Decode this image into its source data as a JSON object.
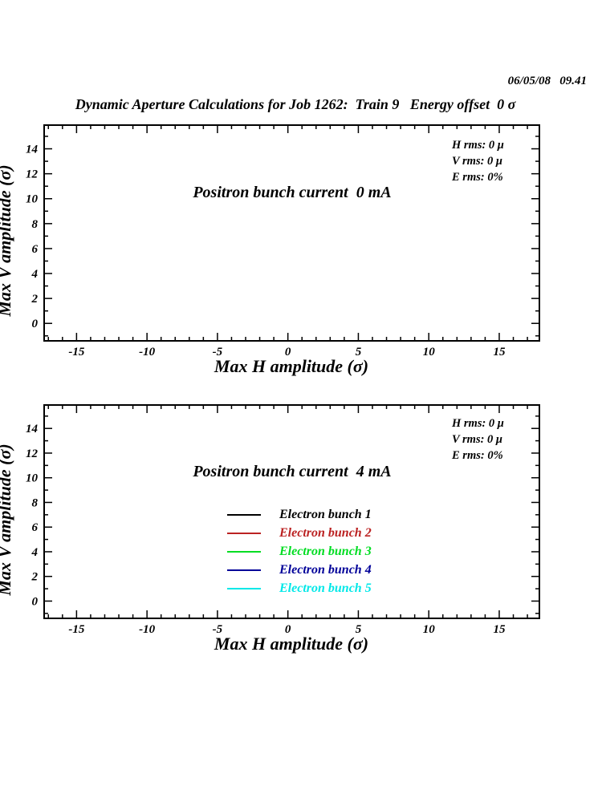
{
  "page": {
    "timestamp": "06/05/08   09.41",
    "title": "Dynamic Aperture Calculations for Job 1262:  Train 9   Energy offset  0 σ"
  },
  "chart_data": [
    {
      "type": "line",
      "title": "",
      "xlabel": "Max H amplitude (σ)",
      "ylabel": "Max V amplitude (σ)",
      "xlim": [
        -17.3,
        17.85
      ],
      "ylim": [
        -1.4,
        15.9
      ],
      "xticks": [
        -15,
        -10,
        -5,
        0,
        5,
        10,
        15
      ],
      "yticks": [
        0,
        2,
        4,
        6,
        8,
        10,
        12,
        14
      ],
      "minor_tick_step": 1,
      "grid": false,
      "series": [],
      "annotations": {
        "center_label": "Positron bunch current  0 mA",
        "h_rms": "H rms: 0 μ",
        "v_rms": "V rms: 0 μ",
        "e_rms": "E rms: 0%"
      }
    },
    {
      "type": "line",
      "title": "",
      "xlabel": "Max H amplitude (σ)",
      "ylabel": "Max V amplitude (σ)",
      "xlim": [
        -17.3,
        17.85
      ],
      "ylim": [
        -1.4,
        15.9
      ],
      "xticks": [
        -15,
        -10,
        -5,
        0,
        5,
        10,
        15
      ],
      "yticks": [
        0,
        2,
        4,
        6,
        8,
        10,
        12,
        14
      ],
      "minor_tick_step": 1,
      "grid": false,
      "series": [],
      "annotations": {
        "center_label": "Positron bunch current  4 mA",
        "h_rms": "H rms: 0 μ",
        "v_rms": "V rms: 0 μ",
        "e_rms": "E rms: 0%"
      },
      "legend": [
        {
          "label": "Electron bunch 1",
          "color": "#000000"
        },
        {
          "label": "Electron bunch 2",
          "color": "#bb2222"
        },
        {
          "label": "Electron bunch 3",
          "color": "#00dd22"
        },
        {
          "label": "Electron bunch 4",
          "color": "#000099"
        },
        {
          "label": "Electron bunch 5",
          "color": "#00e8e8"
        }
      ],
      "legend_position": "center"
    }
  ]
}
